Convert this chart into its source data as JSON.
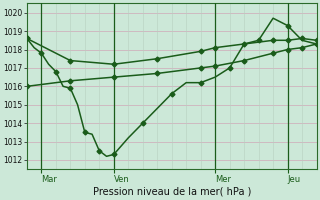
{
  "xlabel": "Pression niveau de la mer( hPa )",
  "ylim": [
    1011.5,
    1020.5
  ],
  "yticks": [
    1012,
    1013,
    1014,
    1015,
    1016,
    1017,
    1018,
    1019,
    1020
  ],
  "background_color": "#cce8d8",
  "grid_color_h": "#d0a8b8",
  "grid_color_v": "#b8d0c0",
  "line_color": "#1a5c1a",
  "line_width": 1.1,
  "marker": "D",
  "marker_size": 2.5,
  "xlim": [
    0,
    20
  ],
  "vline_positions": [
    1,
    6,
    13,
    18
  ],
  "vline_labels": [
    "Mar",
    "Ven",
    "Mer",
    "Jeu"
  ],
  "series1_x": [
    0,
    0.5,
    1.0,
    1.5,
    2,
    2.5,
    3,
    3.5,
    4,
    4.5,
    5,
    5.5,
    6,
    7,
    8,
    9,
    10,
    11,
    12,
    13,
    14,
    15,
    16,
    17,
    18,
    19,
    20
  ],
  "series1_y": [
    1018.6,
    1018.1,
    1017.8,
    1017.2,
    1016.8,
    1016.0,
    1015.9,
    1015.0,
    1013.5,
    1013.4,
    1012.5,
    1012.2,
    1012.3,
    1013.2,
    1014.0,
    1014.8,
    1015.6,
    1016.2,
    1016.2,
    1016.5,
    1017.0,
    1018.3,
    1018.5,
    1019.7,
    1019.3,
    1018.5,
    1018.3
  ],
  "series2_x": [
    0,
    3,
    6,
    9,
    12,
    13,
    15,
    17,
    18,
    19,
    20
  ],
  "series2_y": [
    1018.6,
    1017.4,
    1017.2,
    1017.5,
    1017.9,
    1018.1,
    1018.3,
    1018.5,
    1018.5,
    1018.6,
    1018.5
  ],
  "series3_x": [
    0,
    3,
    6,
    9,
    12,
    13,
    15,
    17,
    18,
    19,
    20
  ],
  "series3_y": [
    1016.0,
    1016.3,
    1016.5,
    1016.7,
    1017.0,
    1017.1,
    1017.4,
    1017.8,
    1018.0,
    1018.1,
    1018.3
  ]
}
